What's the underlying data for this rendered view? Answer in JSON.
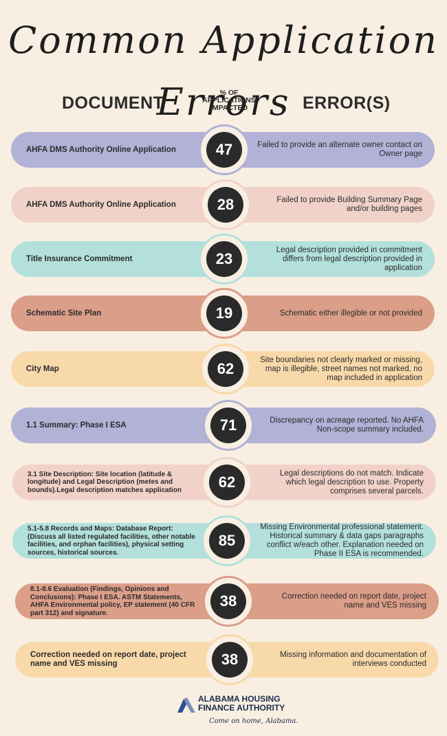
{
  "title": "Common Application Errors",
  "headers": {
    "document": "DOCUMENT",
    "percent_line1": "% OF",
    "percent_line2": "APPLICATIONS",
    "percent_line3": "IMPACTED",
    "errors": "ERROR(S)"
  },
  "colors": {
    "lavender": "#b2b1d6",
    "pink": "#f1d2c9",
    "mint": "#b3e0db",
    "terracotta": "#db9e88",
    "peach": "#f8d9aa",
    "badge": "#2a2a2a",
    "background": "#f8efe2"
  },
  "rows": [
    {
      "document": "AHFA DMS Authority Online Application",
      "percent": "47",
      "error": "Failed to provide an alternate owner contact on Owner page",
      "color": "#b2b1d6"
    },
    {
      "document": "AHFA DMS Authority Online Application",
      "percent": "28",
      "error": "Failed to provide Building Summary Page and/or building pages",
      "color": "#f1d2c9"
    },
    {
      "document": "Title Insurance Commitment",
      "percent": "23",
      "error": "Legal description provided in commitment differs from legal description provided in application",
      "color": "#b3e0db"
    },
    {
      "document": "Schematic Site Plan",
      "percent": "19",
      "error": "Schematic either illegible or not provided",
      "color": "#db9e88"
    },
    {
      "document": "City Map",
      "percent": "62",
      "error": "Site boundaries not clearly marked or missing, map is illegible, street names not marked, no map included in application",
      "color": "#f8d9aa"
    },
    {
      "document": "1.1 Summary: Phase I ESA",
      "percent": "71",
      "error": "Discrepancy on acreage reported. No AHFA Non-scope summary included.",
      "color": "#b2b1d6"
    },
    {
      "document": "3.1 Site Description: Site location (latitude & longitude) and Legal Description (metes and bounds).Legal description matches application",
      "percent": "62",
      "error": "Legal descriptions do not match. Indicate which legal description to use. Property comprises several parcels.",
      "color": "#f1d2c9"
    },
    {
      "document": "5.1-5.8 Records and Maps: Database Report: (Discuss all listed regulated facilities, other notable facilities, and orphan facilities), physical setting sources, historical sources.",
      "percent": "85",
      "error": "Missing Environmental professional statement. Historical summary & data gaps paragraphs conflict w/each other. Explanation needed on Phase II ESA is recommended.",
      "color": "#b3e0db"
    },
    {
      "document": "8.1-8.6 Evaluation (Findings, Opinions and Conclusions): Phase I ESA. ASTM Statements, AHFA Environmental policy, EP statement (40 CFR part 312) and signature.",
      "percent": "38",
      "error": "Correction needed on report date, project name and VES missing",
      "color": "#db9e88"
    },
    {
      "document": "Correction needed on report date, project name and VES missing",
      "percent": "38",
      "error": "Missing information and documentation of interviews conducted",
      "color": "#f8d9aa"
    }
  ],
  "footer": {
    "org_line1": "ALABAMA HOUSING",
    "org_line2": "FINANCE AUTHORITY",
    "tagline": "Come on home, Alabama."
  }
}
